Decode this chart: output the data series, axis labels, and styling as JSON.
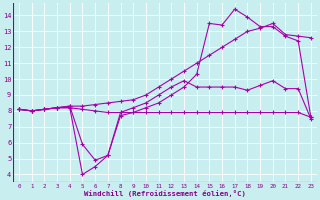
{
  "xlabel": "Windchill (Refroidissement éolien,°C)",
  "background_color": "#c8eef0",
  "grid_color": "#b0dde0",
  "line_color": "#aa00aa",
  "xlim": [
    -0.5,
    23.5
  ],
  "ylim": [
    3.5,
    14.8
  ],
  "xticks": [
    0,
    1,
    2,
    3,
    4,
    5,
    6,
    7,
    8,
    9,
    10,
    11,
    12,
    13,
    14,
    15,
    16,
    17,
    18,
    19,
    20,
    21,
    22,
    23
  ],
  "yticks": [
    4,
    5,
    6,
    7,
    8,
    9,
    10,
    11,
    12,
    13,
    14
  ],
  "series": {
    "line1": {
      "x": [
        0,
        1,
        2,
        3,
        4,
        5,
        6,
        7,
        8,
        9,
        10,
        11,
        12,
        13,
        14,
        15,
        16,
        17,
        18,
        19,
        20,
        21,
        22,
        23
      ],
      "y": [
        8.1,
        8.0,
        8.1,
        8.2,
        8.3,
        8.3,
        8.4,
        8.5,
        8.6,
        8.7,
        9.0,
        9.5,
        10.0,
        10.5,
        11.0,
        11.5,
        12.0,
        12.5,
        13.0,
        13.2,
        13.5,
        12.8,
        12.7,
        12.6
      ]
    },
    "line2": {
      "x": [
        0,
        1,
        2,
        3,
        4,
        5,
        6,
        7,
        8,
        9,
        10,
        11,
        12,
        13,
        14,
        15,
        16,
        17,
        18,
        19,
        20,
        21,
        22,
        23
      ],
      "y": [
        8.1,
        8.0,
        8.1,
        8.2,
        8.3,
        5.9,
        4.9,
        5.2,
        7.7,
        7.9,
        8.2,
        8.5,
        9.0,
        9.5,
        10.3,
        13.5,
        13.4,
        14.4,
        13.9,
        13.3,
        13.3,
        12.7,
        12.4,
        7.6
      ]
    },
    "line3": {
      "x": [
        0,
        1,
        2,
        3,
        4,
        5,
        6,
        7,
        8,
        9,
        10,
        11,
        12,
        13,
        14,
        15,
        16,
        17,
        18,
        19,
        20,
        21,
        22,
        23
      ],
      "y": [
        8.1,
        8.0,
        8.1,
        8.2,
        8.2,
        4.0,
        4.5,
        5.2,
        7.9,
        8.2,
        8.5,
        9.0,
        9.5,
        9.9,
        9.5,
        9.5,
        9.5,
        9.5,
        9.3,
        9.6,
        9.9,
        9.4,
        9.4,
        7.5
      ]
    },
    "line4": {
      "x": [
        0,
        1,
        2,
        3,
        4,
        5,
        6,
        7,
        8,
        9,
        10,
        11,
        12,
        13,
        14,
        15,
        16,
        17,
        18,
        19,
        20,
        21,
        22,
        23
      ],
      "y": [
        8.1,
        8.0,
        8.1,
        8.2,
        8.2,
        8.1,
        8.0,
        7.9,
        7.9,
        7.9,
        7.9,
        7.9,
        7.9,
        7.9,
        7.9,
        7.9,
        7.9,
        7.9,
        7.9,
        7.9,
        7.9,
        7.9,
        7.9,
        7.6
      ]
    }
  }
}
